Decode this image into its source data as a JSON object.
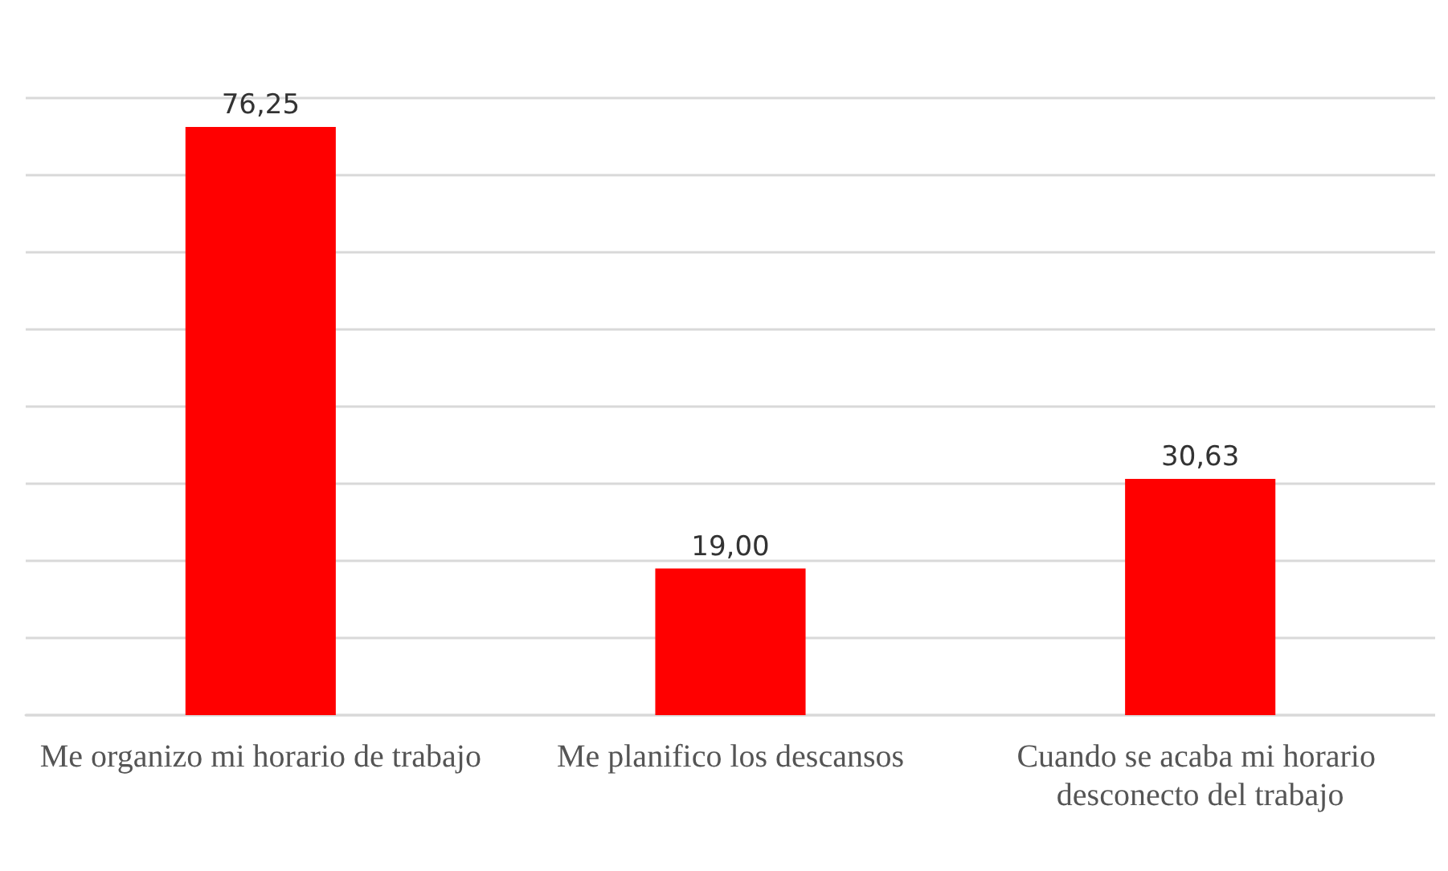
{
  "chart_data": {
    "type": "bar",
    "categories": [
      "Me organizo mi horario de trabajo",
      "Me planifico los descansos",
      "Cuando se acaba mi horario desconecto del trabajo"
    ],
    "values": [
      76.25,
      19.0,
      30.63
    ],
    "value_labels": [
      "76,25",
      "19,00",
      "30,63"
    ],
    "color": "#ff0000",
    "ylim": [
      0,
      80
    ],
    "yticks": [
      {
        "value": 0,
        "label": null
      },
      {
        "value": 10,
        "label": null
      },
      {
        "value": 20,
        "label": null
      },
      {
        "value": 30,
        "label": null
      },
      {
        "value": 40,
        "label": null
      },
      {
        "value": 50,
        "label": null
      },
      {
        "value": 60,
        "label": null
      },
      {
        "value": 70,
        "label": null
      },
      {
        "value": 80,
        "label": null
      }
    ],
    "grid": "y",
    "tick_labels": "x"
  }
}
